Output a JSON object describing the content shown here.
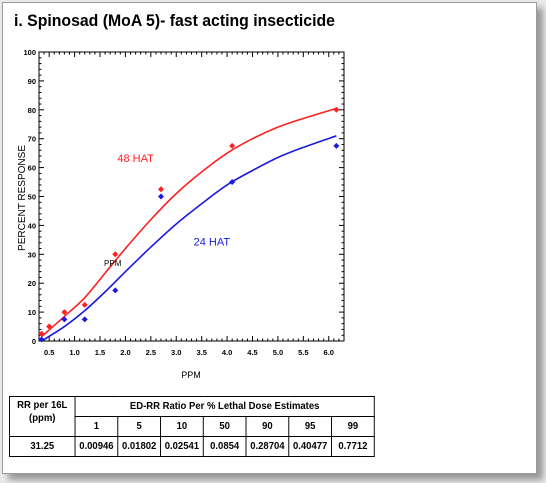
{
  "title": "i. Spinosad (MoA 5)- fast acting insecticide",
  "chart_data": {
    "type": "scatter",
    "xlabel": "PPM",
    "ylabel": "PERCENT RESPONSE",
    "xlim": [
      0.3,
      6.3
    ],
    "ylim": [
      0,
      100
    ],
    "x_ticks": [
      "0.5",
      "1.0",
      "1.5",
      "2.0",
      "2.5",
      "3.0",
      "3.5",
      "4.0",
      "4.5",
      "5.0",
      "5.5",
      "6.0"
    ],
    "y_ticks": [
      "0",
      "10",
      "20",
      "30",
      "40",
      "50",
      "60",
      "70",
      "80",
      "90",
      "100"
    ],
    "grid": false,
    "annotations": [
      {
        "text": "48 HAT",
        "x": 2.2,
        "y": 62,
        "color": "#ff2020"
      },
      {
        "text": "24 HAT",
        "x": 3.7,
        "y": 33,
        "color": "#1a1adf"
      },
      {
        "text": "PPM",
        "x": 1.75,
        "y": 26,
        "color": "#000000"
      }
    ],
    "series": [
      {
        "name": "48 HAT",
        "color": "#ff2020",
        "marker": "diamond",
        "points": [
          [
            0.35,
            2.5
          ],
          [
            0.5,
            5
          ],
          [
            0.8,
            10
          ],
          [
            1.2,
            12.5
          ],
          [
            1.8,
            30
          ],
          [
            2.7,
            52.5
          ],
          [
            4.1,
            67.5
          ],
          [
            6.15,
            80
          ]
        ],
        "fit_curve": [
          [
            0.35,
            1.5
          ],
          [
            0.8,
            8.5
          ],
          [
            1.2,
            15
          ],
          [
            1.6,
            23.5
          ],
          [
            2.0,
            32
          ],
          [
            2.5,
            42
          ],
          [
            3.0,
            51
          ],
          [
            3.5,
            58.5
          ],
          [
            4.0,
            65
          ],
          [
            4.5,
            70
          ],
          [
            5.0,
            74
          ],
          [
            5.5,
            77
          ],
          [
            6.15,
            80.5
          ]
        ]
      },
      {
        "name": "24 HAT",
        "color": "#1a1adf",
        "marker": "diamond",
        "points": [
          [
            0.35,
            0.5
          ],
          [
            0.8,
            7.5
          ],
          [
            1.2,
            7.5
          ],
          [
            1.8,
            17.5
          ],
          [
            2.7,
            50
          ],
          [
            4.1,
            55
          ],
          [
            6.15,
            67.5
          ]
        ],
        "fit_curve": [
          [
            0.35,
            0
          ],
          [
            0.8,
            5
          ],
          [
            1.2,
            10.5
          ],
          [
            1.6,
            17
          ],
          [
            2.0,
            24
          ],
          [
            2.5,
            32.5
          ],
          [
            3.0,
            40.5
          ],
          [
            3.5,
            47.5
          ],
          [
            4.0,
            54
          ],
          [
            4.5,
            59
          ],
          [
            5.0,
            63.5
          ],
          [
            5.5,
            67
          ],
          [
            6.15,
            71
          ]
        ]
      }
    ]
  },
  "table": {
    "rr_header": "RR per 16L (ppm)",
    "group_header": "ED-RR  Ratio Per % Lethal Dose Estimates",
    "percentages": [
      "1",
      "5",
      "10",
      "50",
      "90",
      "95",
      "99"
    ],
    "rr_value": "31.25",
    "values": [
      "0.00946",
      "0.01802",
      "0.02541",
      "0.0854",
      "0.28704",
      "0.40477",
      "0.7712"
    ]
  }
}
